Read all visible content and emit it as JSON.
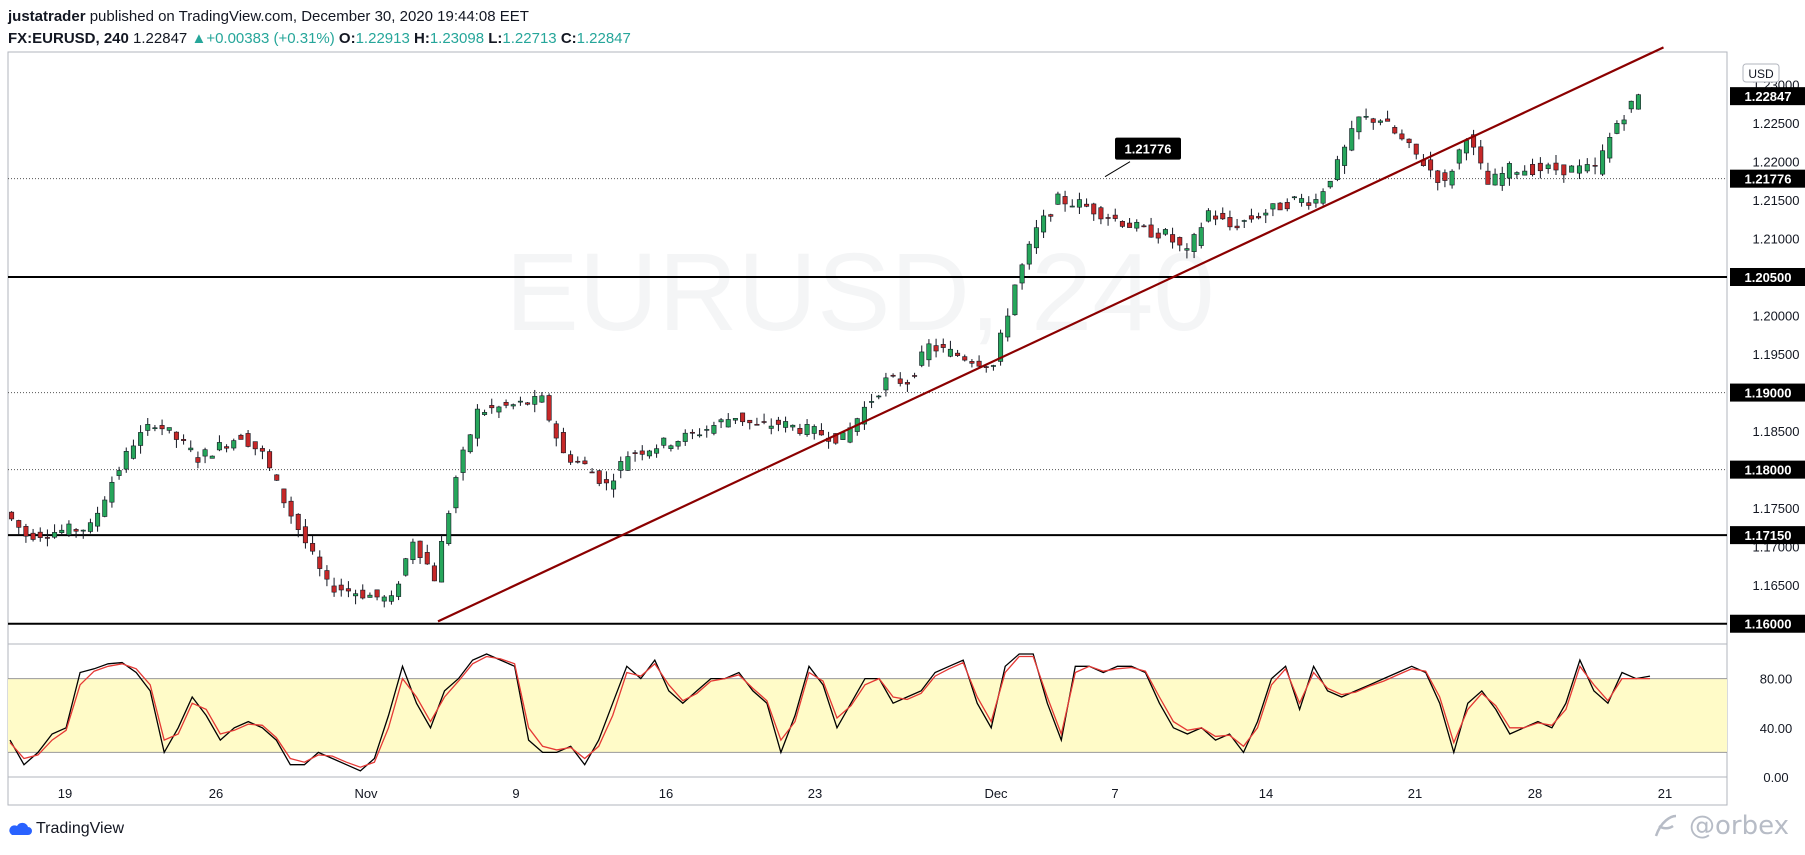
{
  "header": {
    "author": "justatrader",
    "published": "published on TradingView.com, December 30, 2020 19:44:08 EET",
    "symbol": "FX:EURUSD, 240",
    "last": "1.22847",
    "change": "+0.00383 (+0.31%)",
    "change_icon": "up-triangle-icon",
    "open_label": "O:",
    "open": "1.22913",
    "high_label": "H:",
    "high": "1.23098",
    "low_label": "L:",
    "low": "1.22713",
    "close_label": "C:",
    "close": "1.22847"
  },
  "footer": {
    "brand": "TradingView",
    "brand_icon": "tradingview-cloud-icon",
    "watermark": "@orbex",
    "watermark_icon": "orbex-logo-icon"
  },
  "chart_data": [
    {
      "type": "candlestick",
      "symbol_watermark": "EURUSD, 240",
      "currency_label": "USD",
      "ylim": [
        1.1575,
        1.2342
      ],
      "y_ticks": [
        "1.16500",
        "1.17000",
        "1.17500",
        "1.18500",
        "1.19500",
        "1.20000",
        "1.21000",
        "1.21500",
        "1.22000",
        "1.22500",
        "1.23000"
      ],
      "x_ticks": [
        "19",
        "26",
        "Nov",
        "9",
        "16",
        "23",
        "Dec",
        "7",
        "14",
        "21",
        "28",
        "21"
      ],
      "levels": [
        {
          "value": 1.205,
          "label": "1.20500",
          "style": "solid"
        },
        {
          "value": 1.1715,
          "label": "1.17150",
          "style": "solid"
        },
        {
          "value": 1.16,
          "label": "1.16000",
          "style": "solid"
        },
        {
          "value": 1.19,
          "label": "1.19000",
          "style": "dotted"
        },
        {
          "value": 1.18,
          "label": "1.18000",
          "style": "dotted"
        },
        {
          "value": 1.21776,
          "label": "1.21776",
          "style": "dotted"
        }
      ],
      "last_price": {
        "value": 1.22847,
        "label": "1.22847"
      },
      "callout": {
        "label": "1.21776",
        "value": 1.21776
      },
      "trendline": {
        "from": {
          "x": "Nov 4",
          "y": 1.1603
        },
        "to": {
          "x": "Dec 31",
          "y": 1.2348
        },
        "color": "#8b0000"
      },
      "up_color": "#26a65b",
      "down_color": "#c62828",
      "anchors": [
        {
          "x": "Oct 15",
          "y": 1.1745
        },
        {
          "x": "Oct 16",
          "y": 1.1715
        },
        {
          "x": "Oct 19",
          "y": 1.1725
        },
        {
          "x": "Oct 20",
          "y": 1.1785
        },
        {
          "x": "Oct 21",
          "y": 1.1835
        },
        {
          "x": "Oct 22",
          "y": 1.1862
        },
        {
          "x": "Oct 23",
          "y": 1.184
        },
        {
          "x": "Oct 24",
          "y": 1.1815
        },
        {
          "x": "Oct 26",
          "y": 1.1845
        },
        {
          "x": "Oct 27",
          "y": 1.182
        },
        {
          "x": "Oct 28",
          "y": 1.176
        },
        {
          "x": "Oct 29",
          "y": 1.1705
        },
        {
          "x": "Oct 30",
          "y": 1.165
        },
        {
          "x": "Nov 2",
          "y": 1.163
        },
        {
          "x": "Nov 3",
          "y": 1.171
        },
        {
          "x": "Nov 4",
          "y": 1.166
        },
        {
          "x": "Nov 5",
          "y": 1.179
        },
        {
          "x": "Nov 6",
          "y": 1.1875
        },
        {
          "x": "Nov 9",
          "y": 1.189
        },
        {
          "x": "Nov 10",
          "y": 1.182
        },
        {
          "x": "Nov 11",
          "y": 1.1805
        },
        {
          "x": "Nov 12",
          "y": 1.178
        },
        {
          "x": "Nov 13",
          "y": 1.182
        },
        {
          "x": "Nov 16",
          "y": 1.1845
        },
        {
          "x": "Nov 18",
          "y": 1.187
        },
        {
          "x": "Nov 19",
          "y": 1.1855
        },
        {
          "x": "Nov 20",
          "y": 1.186
        },
        {
          "x": "Nov 23",
          "y": 1.184
        },
        {
          "x": "Nov 24",
          "y": 1.188
        },
        {
          "x": "Nov 25",
          "y": 1.1915
        },
        {
          "x": "Nov 26",
          "y": 1.1915
        },
        {
          "x": "Nov 27",
          "y": 1.196
        },
        {
          "x": "Nov 30",
          "y": 1.1935
        },
        {
          "x": "Dec 1",
          "y": 1.204
        },
        {
          "x": "Dec 2",
          "y": 1.211
        },
        {
          "x": "Dec 3",
          "y": 1.215
        },
        {
          "x": "Dec 4",
          "y": 1.2145
        },
        {
          "x": "Dec 7",
          "y": 1.211
        },
        {
          "x": "Dec 8",
          "y": 1.2105
        },
        {
          "x": "Dec 9",
          "y": 1.208
        },
        {
          "x": "Dec 10",
          "y": 1.2135
        },
        {
          "x": "Dec 11",
          "y": 1.2115
        },
        {
          "x": "Dec 14",
          "y": 1.215
        },
        {
          "x": "Dec 15",
          "y": 1.215
        },
        {
          "x": "Dec 16",
          "y": 1.2195
        },
        {
          "x": "Dec 17",
          "y": 1.2255
        },
        {
          "x": "Dec 18",
          "y": 1.2255
        },
        {
          "x": "Dec 21",
          "y": 1.217
        },
        {
          "x": "Dec 22",
          "y": 1.2235
        },
        {
          "x": "Dec 23",
          "y": 1.217
        },
        {
          "x": "Dec 24",
          "y": 1.219
        },
        {
          "x": "Dec 28",
          "y": 1.219
        },
        {
          "x": "Dec 29",
          "y": 1.225
        },
        {
          "x": "Dec 30",
          "y": 1.2285
        }
      ]
    },
    {
      "type": "line",
      "indicator": "stochastic",
      "ylim": [
        0,
        100
      ],
      "y_ticks": [
        "80.00",
        "40.00",
        "0.00"
      ],
      "band": [
        20,
        80
      ],
      "band_color": "#fffbc8",
      "series": [
        {
          "color": "#000000",
          "values": [
            30,
            10,
            20,
            35,
            40,
            85,
            88,
            92,
            93,
            85,
            70,
            20,
            40,
            65,
            50,
            30,
            40,
            45,
            40,
            30,
            10,
            10,
            20,
            15,
            10,
            5,
            15,
            50,
            90,
            60,
            40,
            70,
            80,
            95,
            100,
            95,
            90,
            30,
            20,
            20,
            25,
            10,
            30,
            60,
            90,
            80,
            95,
            70,
            60,
            70,
            80,
            80,
            85,
            70,
            60,
            20,
            50,
            90,
            75,
            40,
            60,
            80,
            80,
            60,
            65,
            70,
            85,
            90,
            95,
            60,
            40,
            90,
            100,
            100,
            60,
            30,
            90,
            90,
            85,
            90,
            90,
            85,
            60,
            40,
            35,
            40,
            30,
            35,
            20,
            45,
            80,
            90,
            55,
            90,
            70,
            65,
            70,
            75,
            80,
            85,
            90,
            85,
            60,
            20,
            60,
            70,
            55,
            35,
            40,
            45,
            40,
            60,
            95,
            70,
            60,
            85,
            80,
            82
          ]
        },
        {
          "color": "#e53935",
          "values": [
            28,
            15,
            18,
            30,
            38,
            75,
            86,
            90,
            92,
            88,
            75,
            30,
            35,
            60,
            55,
            35,
            38,
            43,
            42,
            32,
            15,
            12,
            18,
            17,
            12,
            8,
            12,
            40,
            80,
            65,
            45,
            65,
            78,
            92,
            98,
            96,
            92,
            40,
            25,
            22,
            24,
            15,
            25,
            50,
            85,
            82,
            92,
            75,
            62,
            68,
            78,
            80,
            83,
            72,
            62,
            30,
            45,
            85,
            78,
            48,
            58,
            75,
            80,
            65,
            63,
            68,
            82,
            88,
            93,
            65,
            45,
            85,
            98,
            98,
            65,
            35,
            85,
            90,
            86,
            88,
            89,
            86,
            65,
            45,
            38,
            40,
            33,
            34,
            25,
            40,
            75,
            88,
            60,
            85,
            72,
            67,
            69,
            74,
            78,
            83,
            88,
            86,
            65,
            28,
            55,
            68,
            58,
            40,
            40,
            44,
            42,
            55,
            90,
            75,
            62,
            80,
            80,
            80
          ]
        }
      ]
    }
  ]
}
